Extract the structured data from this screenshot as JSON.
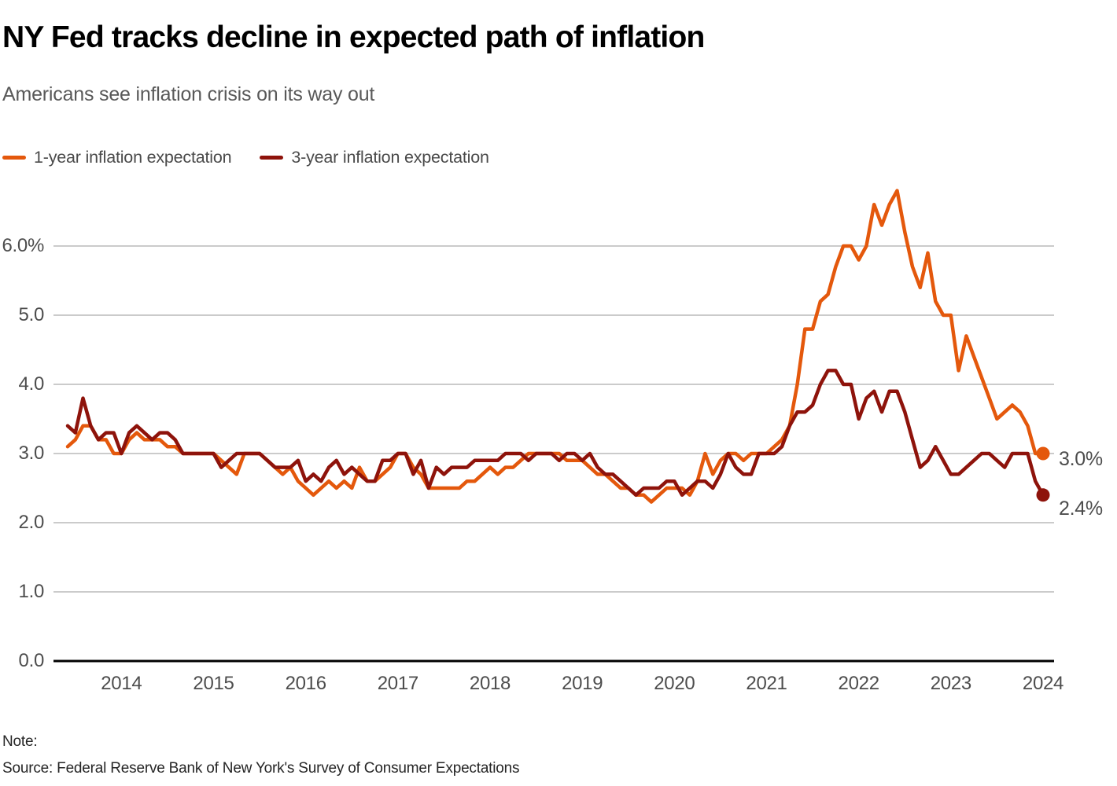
{
  "header": {
    "title": "NY Fed tracks decline in expected path of inflation",
    "subtitle": "Americans see inflation crisis on its way out"
  },
  "footer": {
    "note": "Note:",
    "source": "Source: Federal Reserve Bank of New York's Survey of Consumer Expectations"
  },
  "colors": {
    "one_year": "#e4580c",
    "three_year": "#8e130b",
    "gridline": "#cbcbcb",
    "axis": "#000000",
    "tick_text": "#4d4d4d"
  },
  "chart_data": {
    "type": "line",
    "title": "NY Fed tracks decline in expected path of inflation",
    "subtitle": "Americans see inflation crisis on its way out",
    "frequency": "monthly",
    "x_start": "2013-06",
    "x_end": "2024-01",
    "x_tick_labels": [
      "2014",
      "2015",
      "2016",
      "2017",
      "2018",
      "2019",
      "2020",
      "2021",
      "2022",
      "2023",
      "2024"
    ],
    "y_ticks": [
      {
        "value": 6,
        "label": "6.0%"
      },
      {
        "value": 5,
        "label": "5.0"
      },
      {
        "value": 4,
        "label": "4.0"
      },
      {
        "value": 3,
        "label": "3.0"
      },
      {
        "value": 2,
        "label": "2.0"
      },
      {
        "value": 1,
        "label": "1.0"
      },
      {
        "value": 0,
        "label": "0.0"
      }
    ],
    "ylim": [
      0,
      7.0
    ],
    "grid": "horizontal",
    "legend_position": "top-left",
    "series": [
      {
        "name": "1-year inflation expectation",
        "color": "#e4580c",
        "end_label": "3.0%",
        "end_value": 3.0,
        "values": [
          3.1,
          3.2,
          3.4,
          3.4,
          3.2,
          3.2,
          3.0,
          3.0,
          3.2,
          3.3,
          3.2,
          3.2,
          3.2,
          3.1,
          3.1,
          3.0,
          3.0,
          3.0,
          3.0,
          3.0,
          2.9,
          2.8,
          2.7,
          3.0,
          3.0,
          3.0,
          2.9,
          2.8,
          2.7,
          2.8,
          2.6,
          2.5,
          2.4,
          2.5,
          2.6,
          2.5,
          2.6,
          2.5,
          2.8,
          2.6,
          2.6,
          2.7,
          2.8,
          3.0,
          3.0,
          2.8,
          2.7,
          2.5,
          2.5,
          2.5,
          2.5,
          2.5,
          2.6,
          2.6,
          2.7,
          2.8,
          2.7,
          2.8,
          2.8,
          2.9,
          3.0,
          3.0,
          3.0,
          3.0,
          3.0,
          2.9,
          2.9,
          2.9,
          2.8,
          2.7,
          2.7,
          2.6,
          2.5,
          2.5,
          2.4,
          2.4,
          2.3,
          2.4,
          2.5,
          2.5,
          2.5,
          2.4,
          2.6,
          3.0,
          2.7,
          2.9,
          3.0,
          3.0,
          2.9,
          3.0,
          3.0,
          3.0,
          3.1,
          3.2,
          3.4,
          4.0,
          4.8,
          4.8,
          5.2,
          5.3,
          5.7,
          6.0,
          6.0,
          5.8,
          6.0,
          6.6,
          6.3,
          6.6,
          6.8,
          6.2,
          5.7,
          5.4,
          5.9,
          5.2,
          5.0,
          5.0,
          4.2,
          4.7,
          4.4,
          4.1,
          3.8,
          3.5,
          3.6,
          3.7,
          3.6,
          3.4,
          3.0,
          3.0
        ]
      },
      {
        "name": "3-year inflation expectation",
        "color": "#8e130b",
        "end_label": "2.4%",
        "end_value": 2.4,
        "values": [
          3.4,
          3.3,
          3.8,
          3.4,
          3.2,
          3.3,
          3.3,
          3.0,
          3.3,
          3.4,
          3.3,
          3.2,
          3.3,
          3.3,
          3.2,
          3.0,
          3.0,
          3.0,
          3.0,
          3.0,
          2.8,
          2.9,
          3.0,
          3.0,
          3.0,
          3.0,
          2.9,
          2.8,
          2.8,
          2.8,
          2.9,
          2.6,
          2.7,
          2.6,
          2.8,
          2.9,
          2.7,
          2.8,
          2.7,
          2.6,
          2.6,
          2.9,
          2.9,
          3.0,
          3.0,
          2.7,
          2.9,
          2.5,
          2.8,
          2.7,
          2.8,
          2.8,
          2.8,
          2.9,
          2.9,
          2.9,
          2.9,
          3.0,
          3.0,
          3.0,
          2.9,
          3.0,
          3.0,
          3.0,
          2.9,
          3.0,
          3.0,
          2.9,
          3.0,
          2.8,
          2.7,
          2.7,
          2.6,
          2.5,
          2.4,
          2.5,
          2.5,
          2.5,
          2.6,
          2.6,
          2.4,
          2.5,
          2.6,
          2.6,
          2.5,
          2.7,
          3.0,
          2.8,
          2.7,
          2.7,
          3.0,
          3.0,
          3.0,
          3.1,
          3.4,
          3.6,
          3.6,
          3.7,
          4.0,
          4.2,
          4.2,
          4.0,
          4.0,
          3.5,
          3.8,
          3.9,
          3.6,
          3.9,
          3.9,
          3.6,
          3.2,
          2.8,
          2.9,
          3.1,
          2.9,
          2.7,
          2.7,
          2.8,
          2.9,
          3.0,
          3.0,
          2.9,
          2.8,
          3.0,
          3.0,
          3.0,
          2.6,
          2.4
        ]
      }
    ]
  }
}
